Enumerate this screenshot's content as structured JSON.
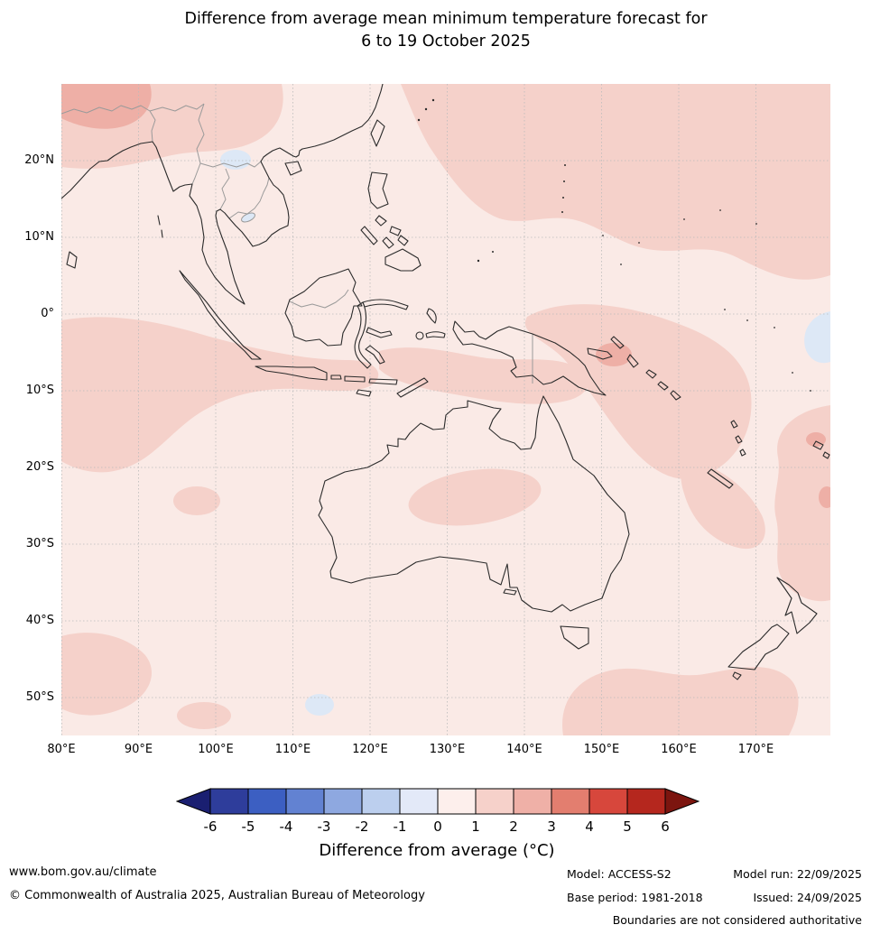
{
  "title": {
    "line1": "Difference from average mean minimum temperature forecast for",
    "line2": "6 to 19 October 2025"
  },
  "map": {
    "lat_labels": [
      "20°N",
      "10°N",
      "0°",
      "10°S",
      "20°S",
      "30°S",
      "40°S",
      "50°S"
    ],
    "lon_labels": [
      "80°E",
      "90°E",
      "100°E",
      "110°E",
      "120°E",
      "130°E",
      "140°E",
      "150°E",
      "160°E",
      "170°E"
    ],
    "colors": {
      "bg": "#faeae6",
      "warm1": "#f5d1ca",
      "warm2": "#eeafa6",
      "cool1": "#dde8f6",
      "coast": "#2b2b2b",
      "border": "#9a9a9a",
      "grid": "#bbbbbb"
    }
  },
  "colorbar": {
    "label": "Difference from average (°C)",
    "tick_labels": [
      "-6",
      "-5",
      "-4",
      "-3",
      "-2",
      "-1",
      "0",
      "1",
      "2",
      "3",
      "4",
      "5",
      "6"
    ],
    "segment_colors": [
      "#2e3d9b",
      "#3c5fc2",
      "#6282d2",
      "#8ea8e0",
      "#bccfee",
      "#e3e9f8",
      "#fdefec",
      "#f6d1ca",
      "#efb0a7",
      "#e37e6f",
      "#d7473c",
      "#b5271e"
    ],
    "arrow_left_color": "#1a1f71",
    "arrow_right_color": "#7c150f"
  },
  "footer": {
    "website": "www.bom.gov.au/climate",
    "copyright": "© Commonwealth of Australia 2025, Australian Bureau of Meteorology",
    "model": "Model: ACCESS-S2",
    "model_run": "Model run: 22/09/2025",
    "base_period": "Base period: 1981-2018",
    "issued": "Issued: 24/09/2025",
    "disclaimer": "Boundaries are not considered authoritative"
  }
}
